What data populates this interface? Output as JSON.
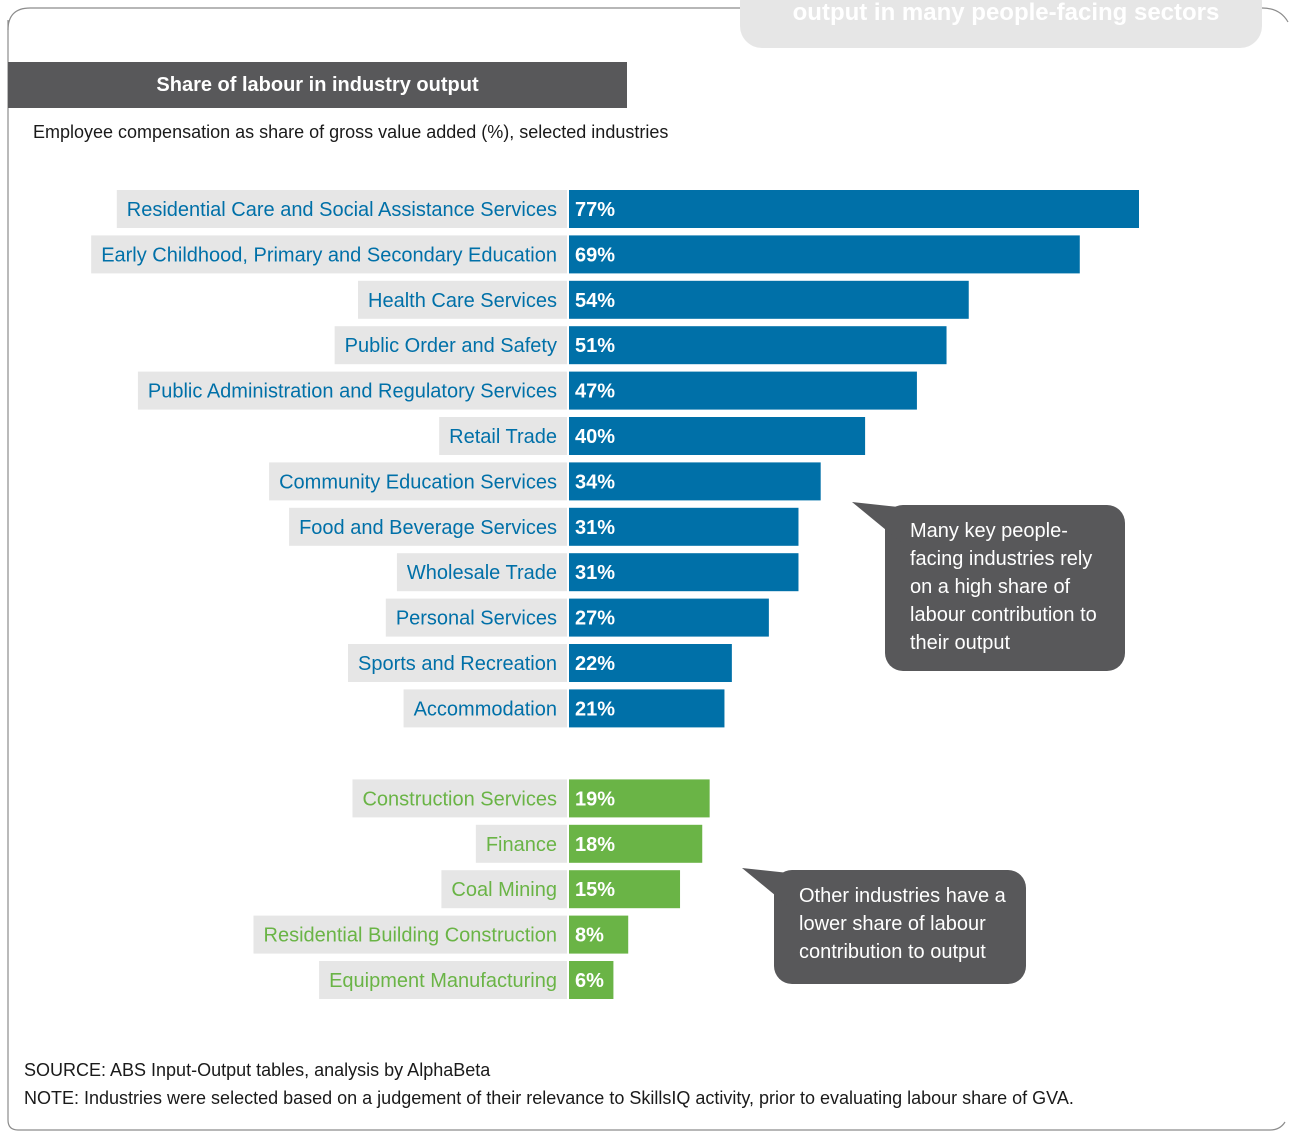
{
  "header": {
    "pill_text": "output in many people-facing sectors",
    "section_title": "Share of labour in industry output",
    "subtitle": "Employee compensation as share of gross value added (%), selected industries"
  },
  "chart_data": {
    "type": "bar",
    "orientation": "horizontal",
    "title": "Share of labour in industry output",
    "subtitle": "Employee compensation as share of gross value added (%), selected industries",
    "xlim": [
      0,
      77
    ],
    "grid": false,
    "colors": {
      "people_facing": "#0070a8",
      "other": "#6ab446",
      "label_background": "#e6e6e6"
    },
    "series": [
      {
        "group": "people_facing",
        "categories": [
          "Residential Care and Social Assistance Services",
          "Early Childhood, Primary and Secondary Education",
          "Health Care Services",
          "Public Order and Safety",
          "Public Administration and Regulatory Services",
          "Retail Trade",
          "Community Education Services",
          "Food and Beverage Services",
          "Wholesale Trade",
          "Personal Services",
          "Sports and Recreation",
          "Accommodation"
        ],
        "values": [
          77,
          69,
          54,
          51,
          47,
          40,
          34,
          31,
          31,
          27,
          22,
          21
        ],
        "labels": [
          "77%",
          "69%",
          "54%",
          "51%",
          "47%",
          "40%",
          "34%",
          "31%",
          "31%",
          "27%",
          "22%",
          "21%"
        ]
      },
      {
        "group": "other",
        "categories": [
          "Construction Services",
          "Finance",
          "Coal Mining",
          "Residential Building Construction",
          "Equipment Manufacturing"
        ],
        "values": [
          19,
          18,
          15,
          8,
          6
        ],
        "labels": [
          "19%",
          "18%",
          "15%",
          "8%",
          "6%"
        ]
      }
    ],
    "annotations": [
      "Many key people-facing industries rely on a high share of labour contribution to their output",
      "Other industries have a lower share of labour contribution to output"
    ]
  },
  "footer": {
    "source": "SOURCE: ABS Input-Output tables, analysis by AlphaBeta",
    "note": "NOTE: Industries were selected based on a judgement of their relevance to SkillsIQ activity, prior to evaluating labour share of GVA."
  }
}
